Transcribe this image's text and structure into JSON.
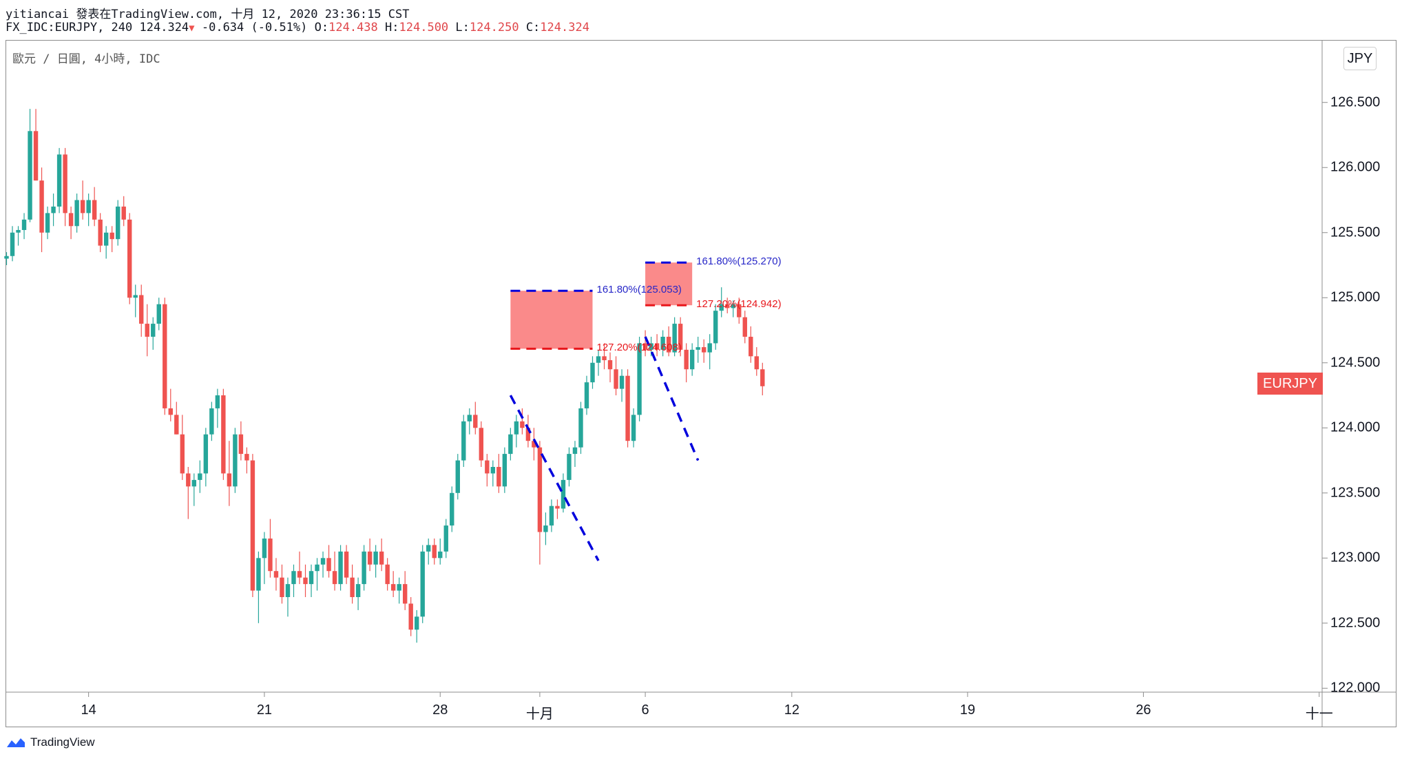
{
  "header": {
    "line1": "yitiancai 發表在TradingView.com, 十月 12, 2020 23:36:15 CST",
    "symbol": "FX_IDC:EURJPY",
    "interval": "240",
    "last": "124.324",
    "change": "-0.634 (-0.51%)",
    "open_label": "O:",
    "open": "124.438",
    "high_label": "H:",
    "high": "124.500",
    "low_label": "L:",
    "low": "124.250",
    "close_label": "C:",
    "close": "124.324"
  },
  "pane_legend": "歐元 / 日圓, 4小時, IDC",
  "currency": "JPY",
  "symbol_tag": "EURJPY",
  "footer": {
    "brand": "TradingView"
  },
  "colors": {
    "up": "#26a69a",
    "down": "#ef5350",
    "fib_blue": "#0000dd",
    "fib_red": "#e8161b",
    "zone": "#fa8484"
  },
  "chart_data": {
    "type": "candlestick",
    "ylim": [
      121.97,
      126.98
    ],
    "y_ticks": [
      122.0,
      122.5,
      123.0,
      123.5,
      124.0,
      124.5,
      125.0,
      125.5,
      126.0,
      126.5
    ],
    "y_tick_labels": [
      "122.000",
      "122.500",
      "123.000",
      "123.500",
      "124.000",
      "124.500",
      "125.000",
      "125.500",
      "126.000",
      "126.500"
    ],
    "x_ticks": [
      {
        "label": "14",
        "bar": 14
      },
      {
        "label": "21",
        "bar": 44
      },
      {
        "label": "28",
        "bar": 74
      },
      {
        "label": "十月",
        "bar": 91
      },
      {
        "label": "6",
        "bar": 109
      },
      {
        "label": "12",
        "bar": 134
      },
      {
        "label": "19",
        "bar": 164
      },
      {
        "label": "26",
        "bar": 194
      },
      {
        "label": "十一",
        "bar": 224
      }
    ],
    "candles": [
      [
        125.3,
        125.35,
        125.25,
        125.32
      ],
      [
        125.32,
        125.55,
        125.28,
        125.5
      ],
      [
        125.5,
        125.55,
        125.4,
        125.52
      ],
      [
        125.52,
        125.65,
        125.45,
        125.6
      ],
      [
        125.6,
        126.45,
        125.58,
        126.28
      ],
      [
        126.28,
        126.45,
        125.9,
        125.9
      ],
      [
        125.9,
        126.0,
        125.35,
        125.5
      ],
      [
        125.5,
        125.7,
        125.45,
        125.65
      ],
      [
        125.65,
        125.8,
        125.55,
        125.7
      ],
      [
        125.7,
        126.15,
        125.65,
        126.1
      ],
      [
        126.1,
        126.15,
        125.55,
        125.65
      ],
      [
        125.65,
        125.7,
        125.45,
        125.55
      ],
      [
        125.55,
        125.8,
        125.5,
        125.75
      ],
      [
        125.75,
        125.9,
        125.6,
        125.65
      ],
      [
        125.65,
        125.8,
        125.55,
        125.75
      ],
      [
        125.75,
        125.85,
        125.55,
        125.6
      ],
      [
        125.6,
        125.65,
        125.35,
        125.4
      ],
      [
        125.4,
        125.55,
        125.3,
        125.5
      ],
      [
        125.5,
        125.55,
        125.35,
        125.45
      ],
      [
        125.45,
        125.75,
        125.4,
        125.7
      ],
      [
        125.7,
        125.78,
        125.55,
        125.6
      ],
      [
        125.6,
        125.65,
        124.95,
        125.0
      ],
      [
        125.0,
        125.1,
        124.85,
        125.02
      ],
      [
        125.02,
        125.1,
        124.7,
        124.8
      ],
      [
        124.8,
        124.95,
        124.55,
        124.7
      ],
      [
        124.7,
        124.85,
        124.6,
        124.8
      ],
      [
        124.8,
        125.0,
        124.75,
        124.95
      ],
      [
        124.95,
        125.0,
        124.1,
        124.15
      ],
      [
        124.15,
        124.3,
        124.05,
        124.1
      ],
      [
        124.1,
        124.2,
        123.95,
        123.95
      ],
      [
        123.95,
        124.1,
        123.6,
        123.65
      ],
      [
        123.65,
        123.7,
        123.3,
        123.55
      ],
      [
        123.55,
        123.65,
        123.4,
        123.6
      ],
      [
        123.6,
        123.75,
        123.5,
        123.65
      ],
      [
        123.65,
        124.0,
        123.55,
        123.95
      ],
      [
        123.95,
        124.2,
        123.9,
        124.15
      ],
      [
        124.15,
        124.3,
        124.0,
        124.25
      ],
      [
        124.25,
        124.3,
        123.6,
        123.65
      ],
      [
        123.65,
        123.9,
        123.4,
        123.55
      ],
      [
        123.55,
        124.0,
        123.5,
        123.95
      ],
      [
        123.95,
        124.05,
        123.75,
        123.8
      ],
      [
        123.8,
        123.85,
        123.65,
        123.75
      ],
      [
        123.75,
        123.8,
        122.7,
        122.75
      ],
      [
        122.75,
        123.05,
        122.5,
        123.0
      ],
      [
        123.0,
        123.2,
        122.8,
        123.15
      ],
      [
        123.15,
        123.3,
        122.85,
        122.9
      ],
      [
        122.9,
        123.0,
        122.75,
        122.85
      ],
      [
        122.85,
        122.95,
        122.65,
        122.7
      ],
      [
        122.7,
        122.85,
        122.55,
        122.8
      ],
      [
        122.8,
        122.95,
        122.7,
        122.9
      ],
      [
        122.9,
        123.05,
        122.8,
        122.85
      ],
      [
        122.85,
        122.95,
        122.7,
        122.8
      ],
      [
        122.8,
        122.95,
        122.7,
        122.9
      ],
      [
        122.9,
        123.0,
        122.75,
        122.95
      ],
      [
        122.95,
        123.05,
        122.85,
        123.0
      ],
      [
        123.0,
        123.1,
        122.85,
        122.9
      ],
      [
        122.9,
        123.05,
        122.75,
        122.8
      ],
      [
        122.8,
        123.1,
        122.75,
        123.05
      ],
      [
        123.05,
        123.1,
        122.8,
        122.85
      ],
      [
        122.85,
        122.95,
        122.65,
        122.7
      ],
      [
        122.7,
        122.85,
        122.6,
        122.8
      ],
      [
        122.8,
        123.1,
        122.75,
        123.05
      ],
      [
        123.05,
        123.15,
        122.9,
        122.95
      ],
      [
        122.95,
        123.1,
        122.85,
        123.05
      ],
      [
        123.05,
        123.15,
        122.9,
        122.95
      ],
      [
        122.95,
        123.0,
        122.75,
        122.8
      ],
      [
        122.8,
        122.9,
        122.7,
        122.75
      ],
      [
        122.75,
        122.85,
        122.65,
        122.8
      ],
      [
        122.8,
        122.9,
        122.6,
        122.65
      ],
      [
        122.65,
        122.7,
        122.4,
        122.45
      ],
      [
        122.45,
        122.6,
        122.35,
        122.55
      ],
      [
        122.55,
        123.1,
        122.5,
        123.05
      ],
      [
        123.05,
        123.15,
        122.95,
        123.1
      ],
      [
        123.1,
        123.15,
        122.95,
        123.0
      ],
      [
        123.0,
        123.15,
        122.95,
        123.05
      ],
      [
        123.05,
        123.3,
        123.0,
        123.25
      ],
      [
        123.25,
        123.55,
        123.2,
        123.5
      ],
      [
        123.5,
        123.8,
        123.45,
        123.75
      ],
      [
        123.75,
        124.1,
        123.7,
        124.05
      ],
      [
        124.05,
        124.15,
        123.95,
        124.1
      ],
      [
        124.1,
        124.2,
        123.95,
        124.0
      ],
      [
        124.0,
        124.05,
        123.7,
        123.75
      ],
      [
        123.75,
        123.8,
        123.55,
        123.65
      ],
      [
        123.65,
        123.75,
        123.55,
        123.7
      ],
      [
        123.7,
        123.8,
        123.5,
        123.55
      ],
      [
        123.55,
        123.85,
        123.5,
        123.8
      ],
      [
        123.8,
        124.0,
        123.75,
        123.95
      ],
      [
        123.95,
        124.1,
        123.85,
        124.05
      ],
      [
        124.05,
        124.15,
        123.95,
        124.0
      ],
      [
        124.0,
        124.1,
        123.85,
        123.9
      ],
      [
        123.9,
        124.0,
        123.75,
        123.85
      ],
      [
        123.85,
        123.9,
        122.95,
        123.2
      ],
      [
        123.2,
        123.35,
        123.1,
        123.25
      ],
      [
        123.25,
        123.45,
        123.2,
        123.4
      ],
      [
        123.4,
        123.45,
        123.3,
        123.38
      ],
      [
        123.38,
        123.65,
        123.35,
        123.6
      ],
      [
        123.6,
        123.85,
        123.55,
        123.8
      ],
      [
        123.8,
        123.9,
        123.7,
        123.85
      ],
      [
        123.85,
        124.2,
        123.8,
        124.15
      ],
      [
        124.15,
        124.4,
        124.1,
        124.35
      ],
      [
        124.35,
        124.55,
        124.3,
        124.5
      ],
      [
        124.5,
        124.6,
        124.4,
        124.55
      ],
      [
        124.55,
        124.65,
        124.45,
        124.52
      ],
      [
        124.52,
        124.58,
        124.35,
        124.45
      ],
      [
        124.45,
        124.55,
        124.25,
        124.3
      ],
      [
        124.3,
        124.45,
        124.2,
        124.4
      ],
      [
        124.4,
        124.45,
        123.85,
        123.9
      ],
      [
        123.9,
        124.15,
        123.85,
        124.1
      ],
      [
        124.1,
        124.7,
        124.05,
        124.65
      ],
      [
        124.65,
        124.75,
        124.55,
        124.6
      ],
      [
        124.6,
        124.7,
        124.55,
        124.65
      ],
      [
        124.65,
        124.72,
        124.55,
        124.6
      ],
      [
        124.6,
        124.75,
        124.55,
        124.7
      ],
      [
        124.7,
        124.78,
        124.55,
        124.58
      ],
      [
        124.58,
        124.85,
        124.55,
        124.8
      ],
      [
        124.8,
        124.85,
        124.55,
        124.6
      ],
      [
        124.6,
        124.65,
        124.35,
        124.45
      ],
      [
        124.45,
        124.65,
        124.4,
        124.6
      ],
      [
        124.6,
        124.7,
        124.5,
        124.62
      ],
      [
        124.62,
        124.68,
        124.5,
        124.58
      ],
      [
        124.58,
        124.72,
        124.45,
        124.65
      ],
      [
        124.65,
        124.95,
        124.6,
        124.9
      ],
      [
        124.9,
        125.08,
        124.85,
        124.95
      ],
      [
        124.95,
        125.0,
        124.88,
        124.92
      ],
      [
        124.92,
        124.98,
        124.85,
        124.95
      ],
      [
        124.95,
        125.0,
        124.8,
        124.85
      ],
      [
        124.85,
        124.9,
        124.65,
        124.7
      ],
      [
        124.7,
        124.78,
        124.5,
        124.55
      ],
      [
        124.55,
        124.62,
        124.4,
        124.45
      ],
      [
        124.45,
        124.5,
        124.25,
        124.32
      ]
    ],
    "fib_zones": [
      {
        "level_161": "161.80%(125.053)",
        "level_127": "127.20%(124.608)",
        "top": 125.053,
        "bottom": 124.608,
        "from_bar": 86,
        "to_bar": 100
      },
      {
        "level_161": "161.80%(125.270)",
        "level_127": "127.20%(124.942)",
        "top": 125.27,
        "bottom": 124.942,
        "from_bar": 109,
        "to_bar": 117
      }
    ],
    "trend_lines": [
      {
        "from": [
          86,
          124.25
        ],
        "to": [
          101,
          122.98
        ]
      },
      {
        "from": [
          109,
          124.7
        ],
        "to": [
          118,
          123.75
        ]
      }
    ]
  }
}
